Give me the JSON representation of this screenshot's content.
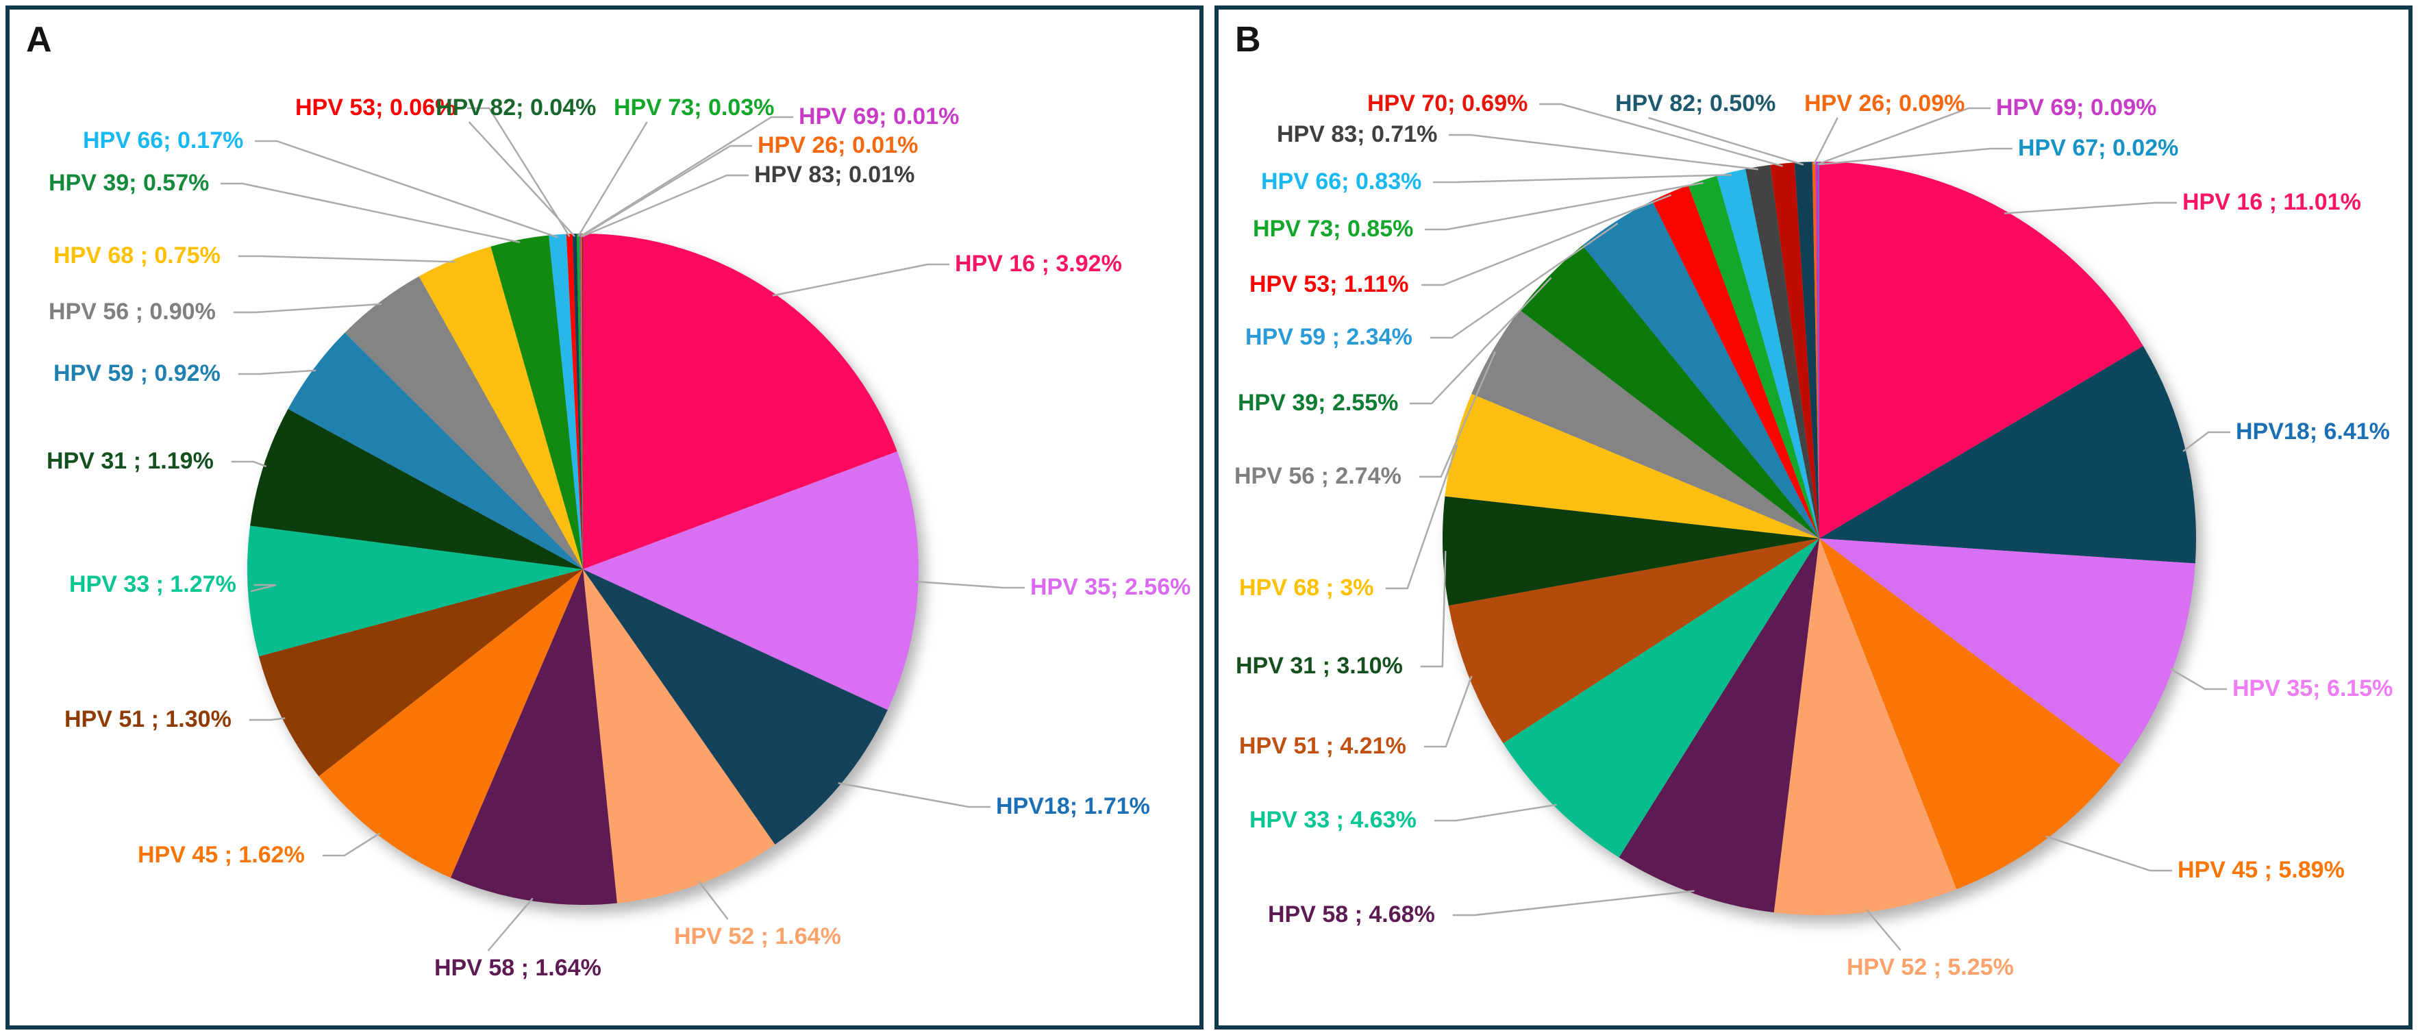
{
  "figure": {
    "description_labels": [
      "A",
      "B"
    ]
  },
  "colors": {
    "panel_border": "#10394E",
    "leader_line": "#ABABAB",
    "background": "#FFFFFF",
    "panel_letter": "#141414"
  },
  "chart_data": [
    {
      "type": "pie",
      "panel": "A",
      "legend_position": "none",
      "label_style": "callout",
      "slices": [
        {
          "category": "HPV 16",
          "value": 3.92,
          "text": "HPV 16 ; 3.92%",
          "color": "#FB0A5F",
          "text_color": "#FB1464"
        },
        {
          "category": "HPV 35",
          "value": 2.56,
          "text": "HPV 35; 2.56%",
          "color": "#D96FF2",
          "text_color": "#DA6BF0"
        },
        {
          "category": "HPV 18",
          "value": 1.71,
          "text": "HPV18; 1.71%",
          "color": "#14425A",
          "text_color": "#1B6FB5"
        },
        {
          "category": "HPV 52",
          "value": 1.64,
          "text": "HPV 52 ; 1.64%",
          "color": "#FCA26B",
          "text_color": "#FCA26B"
        },
        {
          "category": "HPV 58",
          "value": 1.64,
          "text": "HPV 58 ; 1.64%",
          "color": "#5E1A52",
          "text_color": "#5E1A52"
        },
        {
          "category": "HPV 45",
          "value": 1.62,
          "text": "HPV 45 ; 1.62%",
          "color": "#F87506",
          "text_color": "#F87506"
        },
        {
          "category": "HPV 51",
          "value": 1.3,
          "text": "HPV 51 ; 1.30%",
          "color": "#8E3B04",
          "text_color": "#8E3B04"
        },
        {
          "category": "HPV 33",
          "value": 1.27,
          "text": "HPV 33 ; 1.27%",
          "color": "#07BD8D",
          "text_color": "#06C693"
        },
        {
          "category": "HPV 31",
          "value": 1.19,
          "text": "HPV 31 ; 1.19%",
          "color": "#0C3D0C",
          "text_color": "#14501E"
        },
        {
          "category": "HPV 59",
          "value": 0.92,
          "text": "HPV 59 ; 0.92%",
          "color": "#2080AE",
          "text_color": "#2080AE"
        },
        {
          "category": "HPV 56",
          "value": 0.9,
          "text": "HPV 56 ; 0.90%",
          "color": "#848484",
          "text_color": "#808080"
        },
        {
          "category": "HPV 68",
          "value": 0.75,
          "text": "HPV 68 ; 0.75%",
          "color": "#FCBF10",
          "text_color": "#FFC000"
        },
        {
          "category": "HPV 39",
          "value": 0.57,
          "text": "HPV 39; 0.57%",
          "color": "#128A10",
          "text_color": "#168A3C"
        },
        {
          "category": "HPV 66",
          "value": 0.17,
          "text": "HPV 66; 0.17%",
          "color": "#29B6E9",
          "text_color": "#19B8F1"
        },
        {
          "category": "HPV 53",
          "value": 0.06,
          "text": "HPV 53; 0.06%",
          "color": "#FA0500",
          "text_color": "#FF0000"
        },
        {
          "category": "HPV 82",
          "value": 0.04,
          "text": "HPV 82; 0.04%",
          "color": "#113F55",
          "text_color": "#17672B"
        },
        {
          "category": "HPV 73",
          "value": 0.03,
          "text": "HPV 73; 0.03%",
          "color": "#13A82B",
          "text_color": "#12A62B"
        },
        {
          "category": "HPV 69",
          "value": 0.01,
          "text": "HPV 69; 0.01%",
          "color": "#C433C4",
          "text_color": "#C73BC7"
        },
        {
          "category": "HPV 26",
          "value": 0.01,
          "text": "HPV 26; 0.01%",
          "color": "#F06414",
          "text_color": "#F4690F"
        },
        {
          "category": "HPV 83",
          "value": 0.01,
          "text": "HPV 83; 0.01%",
          "color": "#434343",
          "text_color": "#3F3F3F"
        }
      ]
    },
    {
      "type": "pie",
      "panel": "B",
      "legend_position": "none",
      "label_style": "callout",
      "slices": [
        {
          "category": "HPV 16",
          "value": 11.01,
          "text": "HPV 16 ; 11.01%",
          "color": "#FB0A5F",
          "text_color": "#FB1464"
        },
        {
          "category": "HPV 18",
          "value": 6.41,
          "text": "HPV18; 6.41%",
          "color": "#0D455C",
          "text_color": "#1B6FB5"
        },
        {
          "category": "HPV 35",
          "value": 6.15,
          "text": "HPV 35; 6.15%",
          "color": "#D96FF2",
          "text_color": "#EE7CF2"
        },
        {
          "category": "HPV 45",
          "value": 5.89,
          "text": "HPV 45 ; 5.89%",
          "color": "#F87506",
          "text_color": "#F87506"
        },
        {
          "category": "HPV 52",
          "value": 5.25,
          "text": "HPV 52 ; 5.25%",
          "color": "#FCA26B",
          "text_color": "#FCA26B"
        },
        {
          "category": "HPV 58",
          "value": 4.68,
          "text": "HPV 58 ; 4.68%",
          "color": "#5E1A52",
          "text_color": "#5E1A52"
        },
        {
          "category": "HPV 33",
          "value": 4.63,
          "text": "HPV 33 ; 4.63%",
          "color": "#07BD8D",
          "text_color": "#06C693"
        },
        {
          "category": "HPV 51",
          "value": 4.21,
          "text": "HPV 51 ; 4.21%",
          "color": "#B54A0D",
          "text_color": "#C0500F"
        },
        {
          "category": "HPV 31",
          "value": 3.1,
          "text": "HPV 31 ; 3.10%",
          "color": "#0C3D0C",
          "text_color": "#14501E"
        },
        {
          "category": "HPV 68",
          "value": 3,
          "text": "HPV 68 ; 3%",
          "color": "#FCBF10",
          "text_color": "#FFC000"
        },
        {
          "category": "HPV 56",
          "value": 2.74,
          "text": "HPV 56 ; 2.74%",
          "color": "#848484",
          "text_color": "#808080"
        },
        {
          "category": "HPV 39",
          "value": 2.55,
          "text": "HPV 39; 2.55%",
          "color": "#0B7A0B",
          "text_color": "#0E7C32"
        },
        {
          "category": "HPV 59",
          "value": 2.34,
          "text": "HPV 59 ; 2.34%",
          "color": "#2080AE",
          "text_color": "#2B9BD7"
        },
        {
          "category": "HPV 53",
          "value": 1.11,
          "text": "HPV 53; 1.11%",
          "color": "#FA0500",
          "text_color": "#FF0000"
        },
        {
          "category": "HPV 73",
          "value": 0.85,
          "text": "HPV 73; 0.85%",
          "color": "#13A82B",
          "text_color": "#12A62B"
        },
        {
          "category": "HPV 66",
          "value": 0.83,
          "text": "HPV 66; 0.83%",
          "color": "#29B6E9",
          "text_color": "#19B8F1"
        },
        {
          "category": "HPV 83",
          "value": 0.71,
          "text": "HPV 83; 0.71%",
          "color": "#434343",
          "text_color": "#3F3F3F"
        },
        {
          "category": "HPV 70",
          "value": 0.69,
          "text": "HPV 70; 0.69%",
          "color": "#BE0D00",
          "text_color": "#E8140A"
        },
        {
          "category": "HPV 82",
          "value": 0.5,
          "text": "HPV 82; 0.50%",
          "color": "#113F55",
          "text_color": "#1E5A6E"
        },
        {
          "category": "HPV 26",
          "value": 0.09,
          "text": "HPV 26; 0.09%",
          "color": "#F06414",
          "text_color": "#F4690F"
        },
        {
          "category": "HPV 69",
          "value": 0.09,
          "text": "HPV 69; 0.09%",
          "color": "#C433C4",
          "text_color": "#C73BC7"
        },
        {
          "category": "HPV 67",
          "value": 0.02,
          "text": "HPV 67; 0.02%",
          "color": "#1F9BC8",
          "text_color": "#1593C6"
        }
      ]
    }
  ]
}
